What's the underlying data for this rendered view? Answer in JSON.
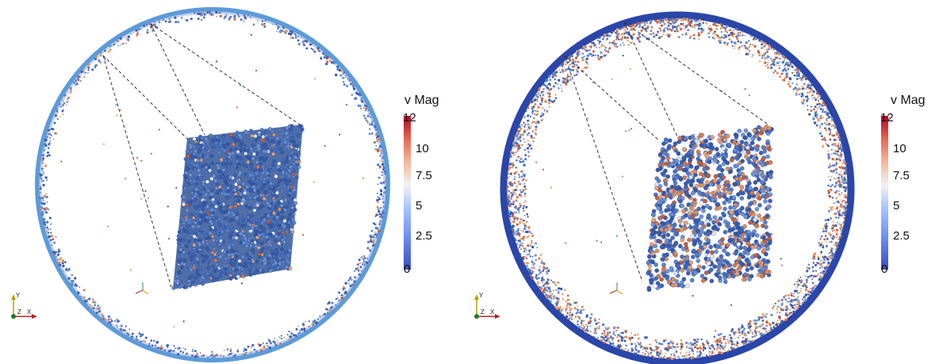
{
  "panels": [
    {
      "legend": {
        "title": "v Mag",
        "ticks": [
          "12",
          "10",
          "7.5",
          "5",
          "2.5",
          "0"
        ]
      },
      "axes": {
        "x": "X",
        "y": "Y",
        "z": "Z"
      }
    },
    {
      "legend": {
        "title": "v Mag",
        "ticks": [
          "12",
          "10",
          "7.5",
          "5",
          "2.5",
          "0"
        ]
      },
      "axes": {
        "x": "X",
        "y": "Y",
        "z": "Z"
      }
    }
  ],
  "colormap": {
    "low": "#3b4cc0",
    "mid": "#f7f7f7",
    "high": "#b40426",
    "range": [
      0,
      12
    ]
  }
}
